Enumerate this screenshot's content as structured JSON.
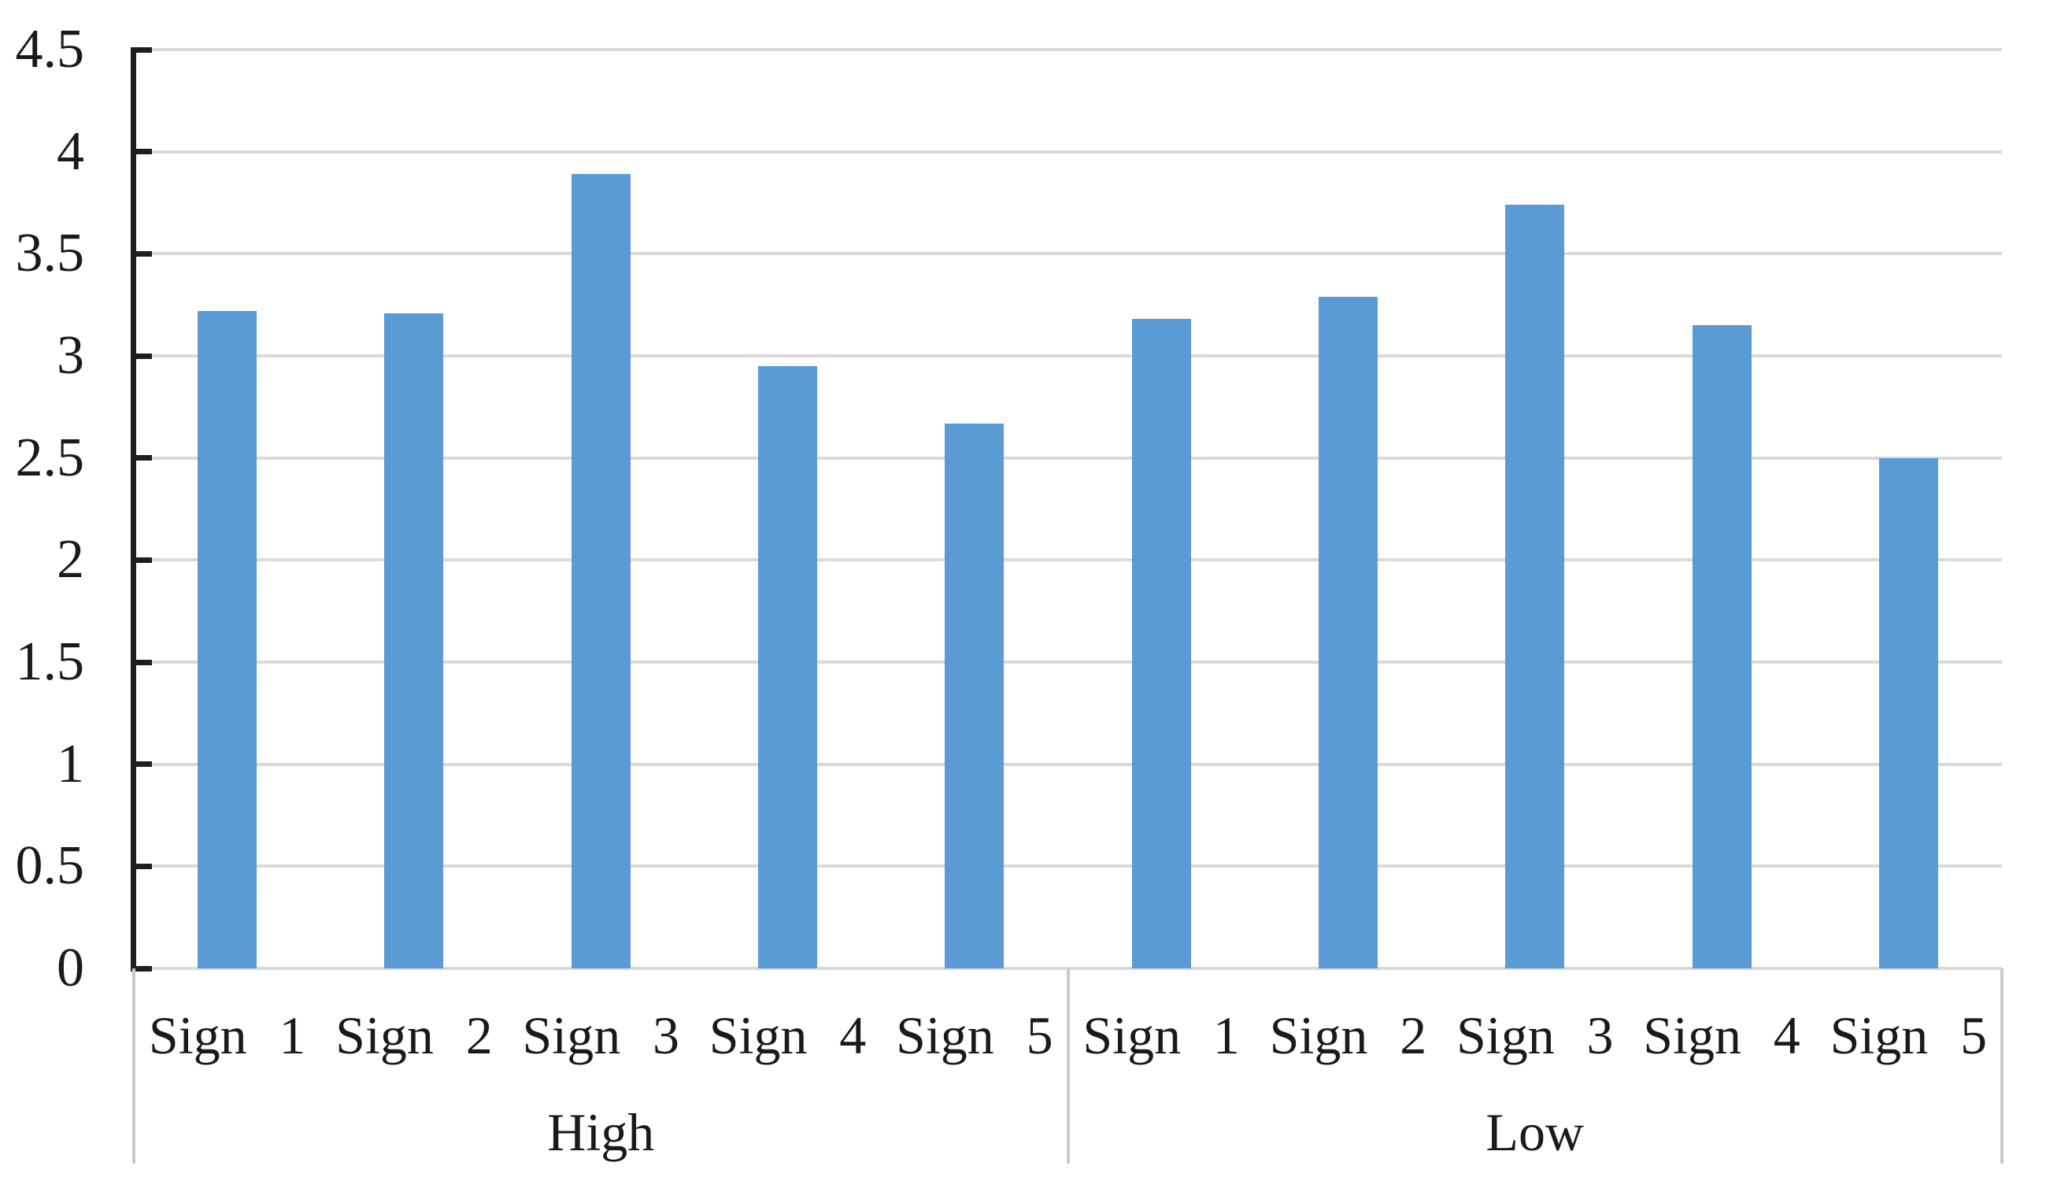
{
  "chart_data": {
    "type": "bar",
    "title": "",
    "xlabel": "",
    "ylabel": "",
    "ylim": [
      0,
      4.5
    ],
    "ytick_step": 0.5,
    "ytick_labels": [
      "4.5",
      "4",
      "3.5",
      "3",
      "2.5",
      "2",
      "1.5",
      "1",
      "0.5",
      "0"
    ],
    "grid": true,
    "legend_position": "none",
    "bar_color": "#5B9BD5",
    "gridline_color": "#D9D9D9",
    "axis_color": "#1E1E1E",
    "divider_color": "#C9C9C9",
    "label_color": "#1A1A1A",
    "groups": [
      {
        "label": "High",
        "categories": [
          "Sign 1",
          "Sign 2",
          "Sign 3",
          "Sign 4",
          "Sign 5"
        ],
        "values": [
          3.22,
          3.21,
          3.89,
          2.95,
          2.67
        ]
      },
      {
        "label": "Low",
        "categories": [
          "Sign 1",
          "Sign 2",
          "Sign 3",
          "Sign 4",
          "Sign 5"
        ],
        "values": [
          3.18,
          3.29,
          3.74,
          3.15,
          2.5
        ]
      }
    ]
  }
}
